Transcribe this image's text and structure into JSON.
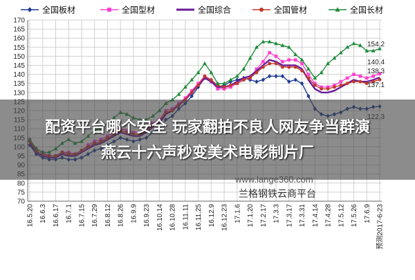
{
  "overlay": {
    "headline_line1": "配资平台哪个安全 玩家翻拍不良人网友争当群演",
    "headline_line2": "燕云十六声秒变美术电影制片厂"
  },
  "watermark": {
    "url": "www.lange360.com",
    "source": "兰格钢铁云商平台"
  },
  "chart_data": {
    "type": "line",
    "title": "",
    "xlabel": "",
    "ylabel": "",
    "ylim": [
      70,
      170
    ],
    "yticks": [
      70,
      75,
      80,
      85,
      90,
      95,
      100,
      105,
      110,
      115,
      120,
      125,
      130,
      135,
      140,
      145,
      150,
      155,
      160,
      165,
      170
    ],
    "grid": true,
    "legend_position": "top",
    "x_tick_labels": [
      "16.5.20",
      "16.6.3",
      "16.6.17",
      "16.7.1",
      "16.7.15",
      "16.7.29",
      "16.8.12",
      "16.8.26",
      "16.9.9",
      "16.9.23",
      "16.10.14",
      "16.10.28",
      "16.11.11",
      "16.11.25",
      "16.12.9",
      "16.12.23",
      "17.1.6",
      "17.1.20",
      "17.2.17",
      "17.3.3",
      "17.3.17",
      "17.3.31",
      "17.4.14",
      "17.4.28",
      "17.5.12",
      "17.5.26",
      "17.6.9",
      "预测2017-6-23"
    ],
    "x_tick_positions": [
      0,
      2,
      4,
      6,
      8,
      10,
      12,
      14,
      16,
      18,
      20,
      22,
      24,
      26,
      28,
      30,
      32,
      34,
      36,
      38,
      40,
      42,
      44,
      46,
      48,
      50,
      52,
      54
    ],
    "n_points": 55,
    "end_labels": [
      "154.2",
      "140.4",
      "138.3",
      "137.1",
      "122.3"
    ],
    "series": [
      {
        "name": "全国板材",
        "color": "#1f3a93",
        "marker": "diamond",
        "values": [
          101,
          96,
          94,
          93,
          93,
          94,
          93,
          93,
          94,
          96,
          98,
          99,
          101,
          103,
          105,
          104,
          103,
          104,
          105,
          108,
          110,
          115,
          117,
          121,
          124,
          128,
          133,
          138,
          136,
          133,
          134,
          136,
          137,
          138,
          137,
          136,
          137,
          139,
          139,
          139,
          136,
          137,
          135,
          128,
          121,
          118,
          117,
          118,
          119,
          121,
          122,
          121,
          121,
          122,
          122.3
        ]
      },
      {
        "name": "全国型材",
        "color": "#ff3fd1",
        "marker": "square",
        "values": [
          104,
          99,
          97,
          95,
          95,
          97,
          97,
          96,
          98,
          101,
          103,
          104,
          106,
          108,
          110,
          109,
          108,
          108,
          110,
          113,
          115,
          120,
          121,
          124,
          127,
          131,
          135,
          139,
          136,
          132,
          132,
          133,
          135,
          137,
          138,
          143,
          147,
          152,
          150,
          147,
          148,
          148,
          146,
          140,
          135,
          133,
          133,
          134,
          136,
          138,
          140,
          139,
          138,
          139,
          140.4
        ]
      },
      {
        "name": "全国综合",
        "color": "#6a1b9a",
        "marker": "none",
        "values": [
          102,
          97,
          95,
          94,
          94,
          96,
          95,
          95,
          97,
          99,
          101,
          102,
          104,
          106,
          108,
          107,
          106,
          106,
          108,
          111,
          113,
          118,
          120,
          123,
          126,
          130,
          134,
          138,
          136,
          133,
          133,
          134,
          136,
          138,
          139,
          142,
          145,
          148,
          147,
          145,
          145,
          145,
          143,
          137,
          132,
          130,
          130,
          131,
          133,
          135,
          137,
          136,
          136,
          137,
          138.3
        ]
      },
      {
        "name": "全国管材",
        "color": "#c0392b",
        "marker": "circle",
        "values": [
          103,
          98,
          96,
          95,
          95,
          97,
          96,
          96,
          98,
          100,
          102,
          103,
          105,
          107,
          109,
          108,
          107,
          107,
          109,
          112,
          114,
          119,
          120,
          123,
          126,
          130,
          134,
          139,
          137,
          134,
          133,
          134,
          135,
          137,
          138,
          141,
          144,
          146,
          146,
          144,
          144,
          144,
          142,
          138,
          134,
          132,
          132,
          133,
          134,
          135,
          136,
          136,
          135,
          136,
          137.1
        ]
      },
      {
        "name": "全国长材",
        "color": "#1e8c3a",
        "marker": "triangle",
        "values": [
          104,
          99,
          97,
          97,
          99,
          102,
          104,
          102,
          103,
          106,
          109,
          110,
          113,
          116,
          119,
          118,
          116,
          115,
          115,
          117,
          120,
          124,
          126,
          129,
          133,
          137,
          141,
          146,
          141,
          135,
          135,
          137,
          139,
          143,
          149,
          155,
          158,
          158,
          157,
          156,
          155,
          151,
          148,
          143,
          138,
          141,
          146,
          149,
          152,
          155,
          157,
          156,
          153,
          153,
          154.2
        ]
      }
    ]
  }
}
